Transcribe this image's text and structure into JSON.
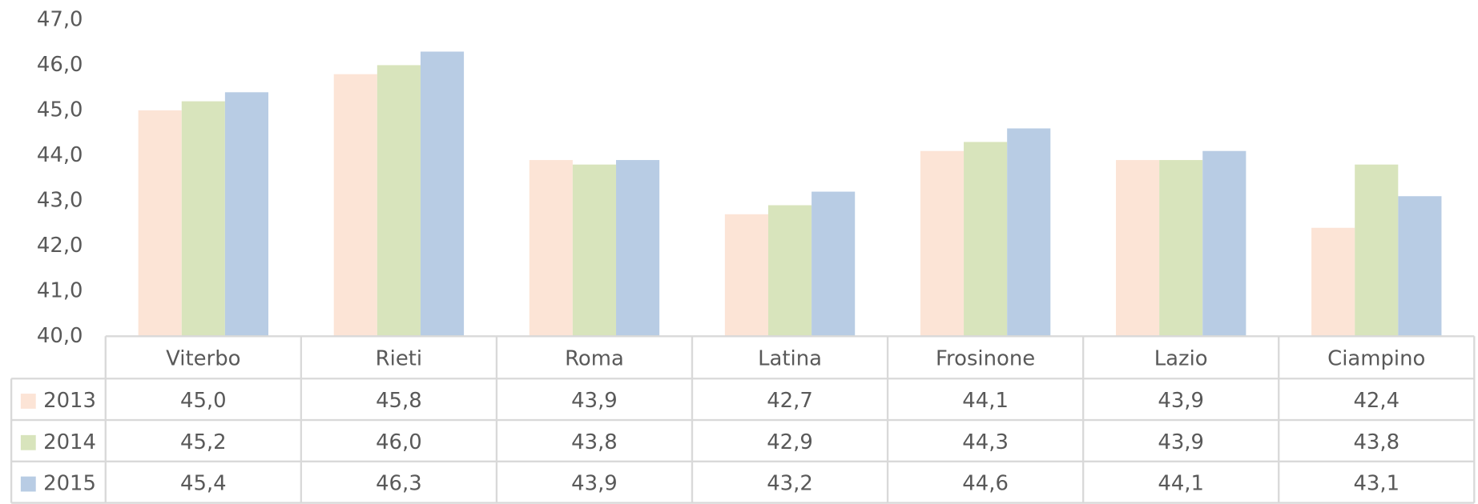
{
  "chart_data": {
    "type": "bar",
    "categories": [
      "Viterbo",
      "Rieti",
      "Roma",
      "Latina",
      "Frosinone",
      "Lazio",
      "Ciampino"
    ],
    "series": [
      {
        "name": "2013",
        "color": "#fce4d6",
        "values": [
          45.0,
          45.8,
          43.9,
          42.7,
          44.1,
          43.9,
          42.4
        ],
        "value_labels": [
          "45,0",
          "45,8",
          "43,9",
          "42,7",
          "44,1",
          "43,9",
          "42,4"
        ]
      },
      {
        "name": "2014",
        "color": "#d8e4bc",
        "values": [
          45.2,
          46.0,
          43.8,
          42.9,
          44.3,
          43.9,
          43.8
        ],
        "value_labels": [
          "45,2",
          "46,0",
          "43,8",
          "42,9",
          "44,3",
          "43,9",
          "43,8"
        ]
      },
      {
        "name": "2015",
        "color": "#b8cce4",
        "values": [
          45.4,
          46.3,
          43.9,
          43.2,
          44.6,
          44.1,
          43.1
        ],
        "value_labels": [
          "45,4",
          "46,3",
          "43,9",
          "43,2",
          "44,6",
          "44,1",
          "43,1"
        ]
      }
    ],
    "ylim": [
      40,
      47
    ],
    "yticks": [
      {
        "value": 40,
        "label": "40,0"
      },
      {
        "value": 41,
        "label": "41,0"
      },
      {
        "value": 42,
        "label": "42,0"
      },
      {
        "value": 43,
        "label": "43,0"
      },
      {
        "value": 44,
        "label": "44,0"
      },
      {
        "value": 45,
        "label": "45,0"
      },
      {
        "value": 46,
        "label": "46,0"
      },
      {
        "value": 47,
        "label": "47,0"
      }
    ],
    "grid": false,
    "data_table": true
  }
}
